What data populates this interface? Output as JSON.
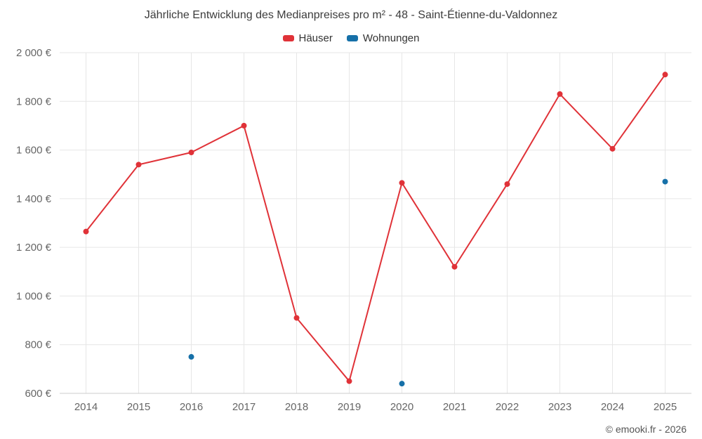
{
  "title": "Jährliche Entwicklung des Medianpreises pro m² - 48 - Saint-Étienne-du-Valdonnez",
  "copyright": "© emooki.fr - 2026",
  "colors": {
    "houses": "#e03238",
    "apartments": "#1670a8",
    "grid": "#e6e6e6",
    "axis_line": "#cccccc",
    "axis_label": "#666666",
    "title_text": "#3c3c3c"
  },
  "chart_data": {
    "type": "line",
    "categories": [
      "2014",
      "2015",
      "2016",
      "2017",
      "2018",
      "2019",
      "2020",
      "2021",
      "2022",
      "2023",
      "2024",
      "2025"
    ],
    "series": [
      {
        "name": "Häuser",
        "type": "line",
        "color": "#e03238",
        "values": [
          1265,
          1540,
          1590,
          1700,
          910,
          650,
          1465,
          1120,
          1460,
          1830,
          1605,
          1910
        ]
      },
      {
        "name": "Wohnungen",
        "type": "scatter",
        "color": "#1670a8",
        "values": [
          null,
          null,
          750,
          null,
          null,
          null,
          640,
          null,
          null,
          null,
          null,
          1470
        ]
      }
    ],
    "title": "Jährliche Entwicklung des Medianpreises pro m² - 48 - Saint-Étienne-du-Valdonnez",
    "xlabel": "",
    "ylabel": "",
    "ylim": [
      600,
      2000
    ],
    "ytick_step": 200,
    "ytick_suffix": " €",
    "grid": true,
    "legend_position": "top"
  }
}
